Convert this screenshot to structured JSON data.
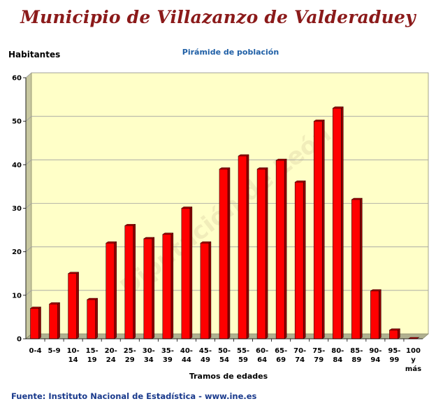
{
  "header": {
    "title": "Municipio de Villazanzo de Valderaduey"
  },
  "source_text": "Fuente: Instituto Nacional de Estadística - www.ine.es",
  "watermark_text": "Diputación de León",
  "chart_data": {
    "type": "bar",
    "title": "Pirámide de población",
    "ylabel": "Habitantes",
    "xlabel": "Tramos de edades",
    "ylim": [
      0,
      60
    ],
    "yticks": [
      0,
      10,
      20,
      30,
      40,
      50,
      60
    ],
    "grid": true,
    "legend": "none",
    "categories": [
      "0-4",
      "5-9",
      "10-14",
      "15-19",
      "20-24",
      "25-29",
      "30-34",
      "35-39",
      "40-44",
      "45-49",
      "50-54",
      "55-59",
      "60-64",
      "65-69",
      "70-74",
      "75-79",
      "80-84",
      "85-89",
      "90-94",
      "95-99",
      "100 y más"
    ],
    "category_lines": [
      [
        "0-4"
      ],
      [
        "5-9"
      ],
      [
        "10-",
        "14"
      ],
      [
        "15-",
        "19"
      ],
      [
        "20-",
        "24"
      ],
      [
        "25-",
        "29"
      ],
      [
        "30-",
        "34"
      ],
      [
        "35-",
        "39"
      ],
      [
        "40-",
        "44"
      ],
      [
        "45-",
        "49"
      ],
      [
        "50-",
        "54"
      ],
      [
        "55-",
        "59"
      ],
      [
        "60-",
        "64"
      ],
      [
        "65-",
        "69"
      ],
      [
        "70-",
        "74"
      ],
      [
        "75-",
        "79"
      ],
      [
        "80-",
        "84"
      ],
      [
        "85-",
        "89"
      ],
      [
        "90-",
        "94"
      ],
      [
        "95-",
        "99"
      ],
      [
        "100",
        "y",
        "más"
      ]
    ],
    "values": [
      7,
      8,
      15,
      9,
      22,
      26,
      23,
      24,
      30,
      22,
      39,
      42,
      39,
      41,
      36,
      50,
      53,
      32,
      11,
      2,
      0
    ],
    "colors": {
      "bar": "#FF0000",
      "bar_side": "#8B0000",
      "bar_top": "#B00000",
      "plot_bg": "#FFFFC8",
      "wall": "#C8C8A0",
      "grid": "#A0A0A0"
    }
  }
}
